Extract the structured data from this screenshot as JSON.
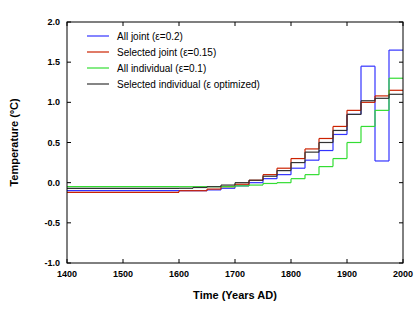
{
  "chart_data": {
    "type": "line",
    "line_style": "step",
    "x_label": "Time (Years AD)",
    "y_label": "Temperature (ºC)",
    "x": [
      1400,
      1600,
      1625,
      1650,
      1675,
      1700,
      1725,
      1750,
      1775,
      1800,
      1825,
      1850,
      1875,
      1900,
      1925,
      1950,
      1975
    ],
    "series": [
      {
        "name": "All joint (ε=0.2)",
        "color": "#3333ff",
        "values": [
          -0.1,
          -0.1,
          -0.1,
          -0.09,
          -0.07,
          -0.04,
          0.0,
          0.05,
          0.1,
          0.18,
          0.28,
          0.4,
          0.6,
          0.85,
          1.45,
          0.27,
          1.65
        ]
      },
      {
        "name": "Selected joint (ε=0.15)",
        "color": "#cc2200",
        "values": [
          -0.12,
          -0.1,
          -0.1,
          -0.08,
          -0.05,
          -0.02,
          0.03,
          0.1,
          0.18,
          0.3,
          0.42,
          0.55,
          0.7,
          0.9,
          1.0,
          1.08,
          1.15
        ]
      },
      {
        "name": "All individual (ε=0.1)",
        "color": "#33dd33",
        "values": [
          -0.05,
          -0.05,
          -0.05,
          -0.05,
          -0.05,
          -0.04,
          -0.03,
          -0.01,
          0.0,
          0.05,
          0.1,
          0.2,
          0.3,
          0.5,
          0.7,
          0.9,
          1.3
        ]
      },
      {
        "name": "Selected individual (ε optimized)",
        "color": "#333333",
        "values": [
          -0.07,
          -0.07,
          -0.06,
          -0.05,
          -0.03,
          0.0,
          0.03,
          0.08,
          0.15,
          0.25,
          0.38,
          0.5,
          0.65,
          0.85,
          1.02,
          1.05,
          1.1
        ]
      }
    ],
    "xlim": [
      1400,
      2000
    ],
    "xticks": [
      1400,
      1500,
      1600,
      1700,
      1800,
      1900,
      2000
    ],
    "ylim": [
      -1.0,
      2.0
    ],
    "yticks": [
      {
        "value": -1.0,
        "label": "-1.0"
      },
      -0.5,
      {
        "value": 0.0,
        "label": "0.0"
      },
      0.5,
      {
        "value": 1.0,
        "label": "1.0"
      },
      1.5,
      {
        "value": 2.0,
        "label": "2.0"
      }
    ],
    "legend": "top-left",
    "grid": false
  }
}
